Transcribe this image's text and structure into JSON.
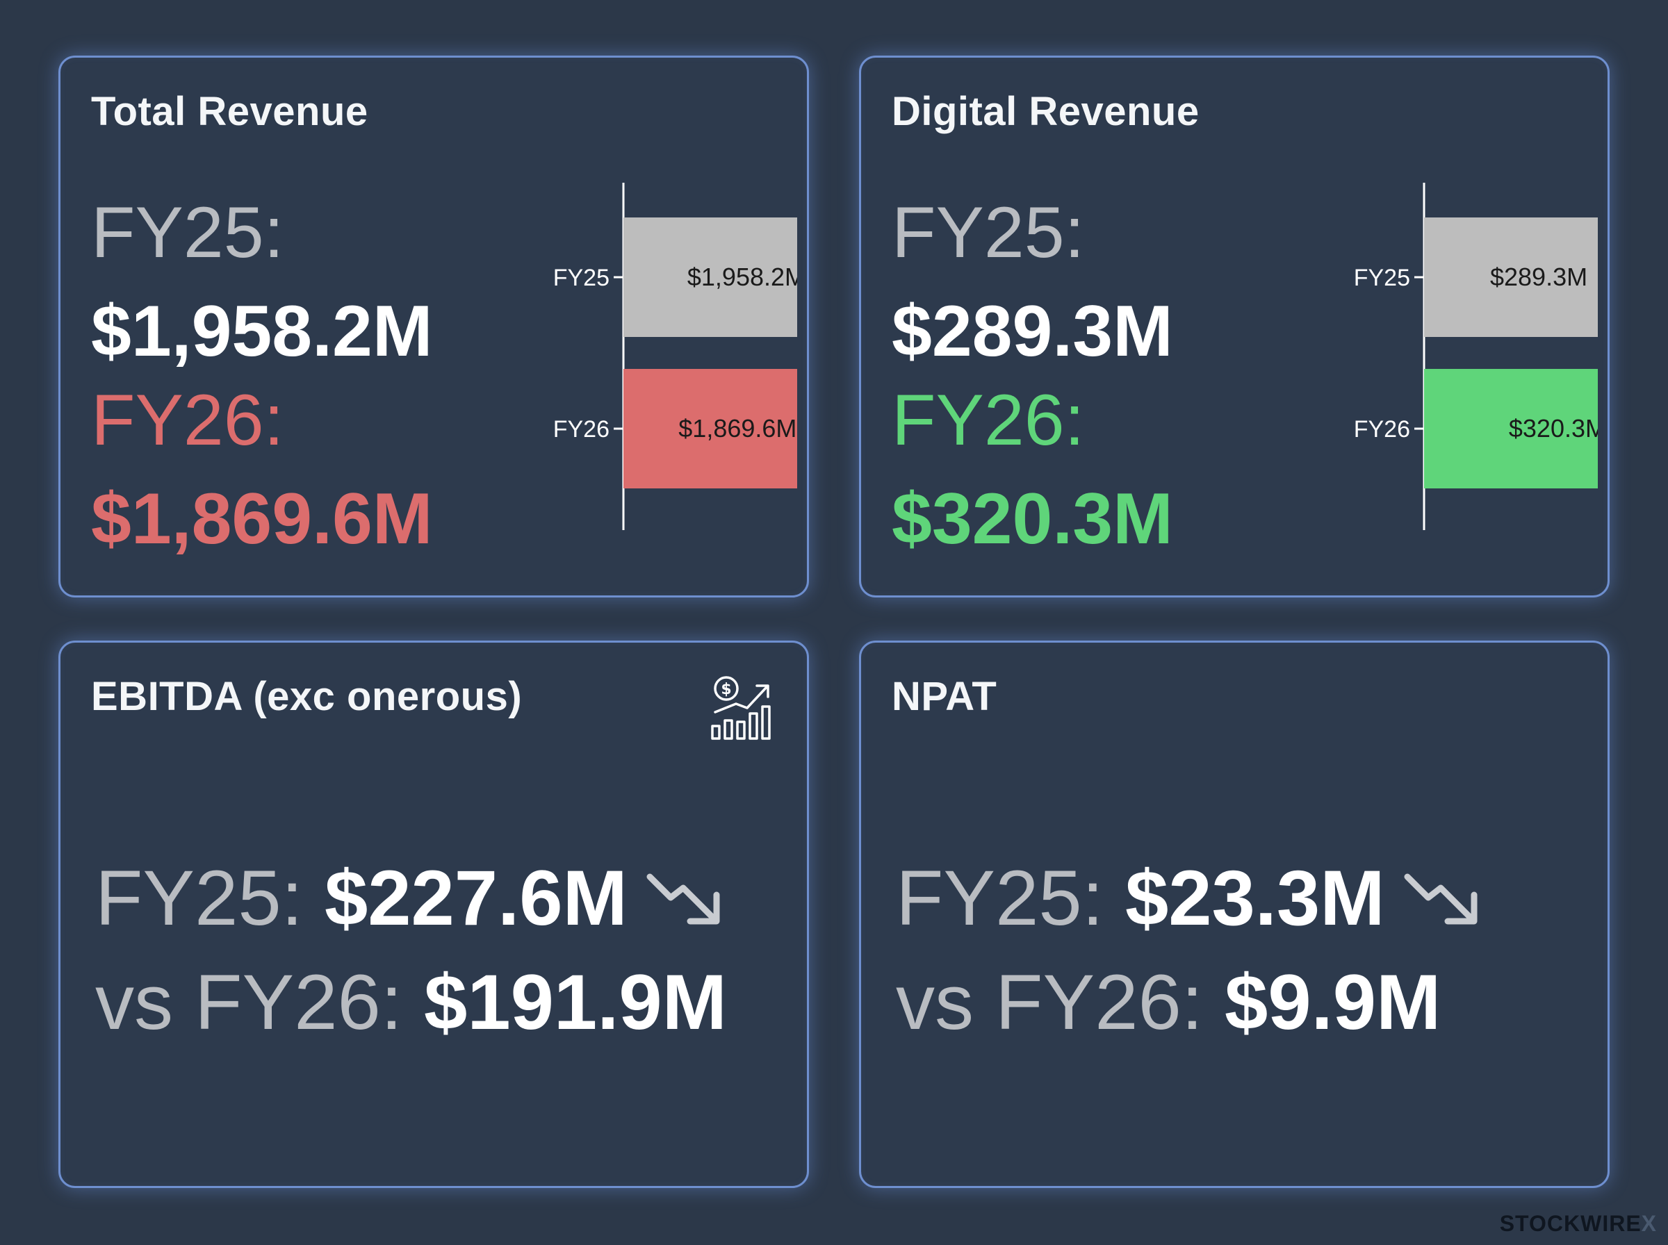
{
  "colors": {
    "background": "#2c3849",
    "card_border": "#6e8fcf",
    "label_gray": "#b9bcc1",
    "decline_red": "#dc6d6d",
    "growth_green": "#5fd57a",
    "bar_gray": "#bdbdbd"
  },
  "cards": {
    "total_revenue": {
      "title": "Total Revenue",
      "fy25_label": "FY25:",
      "fy25_value": "$1,958.2M",
      "fy26_label": "FY26:",
      "fy26_value": "$1,869.6M",
      "fy26_color": "#dc6d6d"
    },
    "digital_revenue": {
      "title": "Digital Revenue",
      "fy25_label": "FY25:",
      "fy25_value": "$289.3M",
      "fy26_label": "FY26:",
      "fy26_value": "$320.3M",
      "fy26_color": "#5fd57a"
    },
    "ebitda": {
      "title": "EBITDA (exc onerous)",
      "line1_label": "FY25: ",
      "line1_value": "$227.6M",
      "line2_label": "vs FY26: ",
      "line2_value": "$191.9M",
      "icon": "dollar-growth-chart-icon",
      "trend_icon": "trend-down-arrow-icon"
    },
    "npat": {
      "title": "NPAT",
      "line1_label": "FY25: ",
      "line1_value": "$23.3M",
      "line2_label": "vs FY26: ",
      "line2_value": "$9.9M",
      "trend_icon": "trend-down-arrow-icon"
    }
  },
  "chart_data": [
    {
      "type": "bar",
      "orientation": "horizontal",
      "categories": [
        "FY25",
        "FY26"
      ],
      "values": [
        1958.2,
        1869.6
      ],
      "data_labels": [
        "$1,958.2M",
        "$1,869.6M"
      ],
      "bar_colors": [
        "#bdbdbd",
        "#dc6d6d"
      ],
      "xlim": [
        0,
        1958.2
      ]
    },
    {
      "type": "bar",
      "orientation": "horizontal",
      "categories": [
        "FY25",
        "FY26"
      ],
      "values": [
        289.3,
        320.3
      ],
      "data_labels": [
        "$289.3M",
        "$320.3M"
      ],
      "bar_colors": [
        "#bdbdbd",
        "#5fd57a"
      ],
      "xlim": [
        0,
        320.3
      ]
    }
  ],
  "watermark": {
    "text": "STOCKWIRE",
    "mark": "X"
  }
}
